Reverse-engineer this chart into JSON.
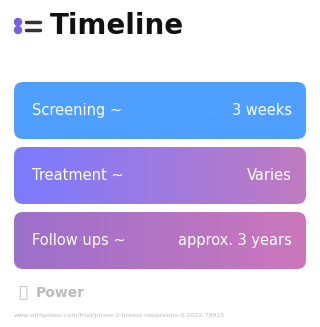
{
  "title": "Timeline",
  "title_fontsize": 20,
  "title_color": "#111111",
  "title_icon_color_dot": "#7B5CF0",
  "title_icon_line_color": "#333333",
  "background_color": "#ffffff",
  "rows": [
    {
      "label": "Screening ~",
      "value": "3 weeks",
      "color_left": "#4E9FFF",
      "color_right": "#4E9FFF"
    },
    {
      "label": "Treatment ~",
      "value": "Varies",
      "color_left": "#7B7AFF",
      "color_right": "#C07AC0"
    },
    {
      "label": "Follow ups ~",
      "value": "approx. 3 years",
      "color_left": "#9B70CC",
      "color_right": "#CC77BB"
    }
  ],
  "watermark": "Power",
  "watermark_color": "#bbbbbb",
  "url_text": "www.withpower.com/trial/phase-2-breast-neoplasms-8-2022-78915",
  "url_color": "#bbbbbb",
  "row_text_color": "#ffffff",
  "row_label_fontsize": 10.5,
  "row_value_fontsize": 10.5
}
